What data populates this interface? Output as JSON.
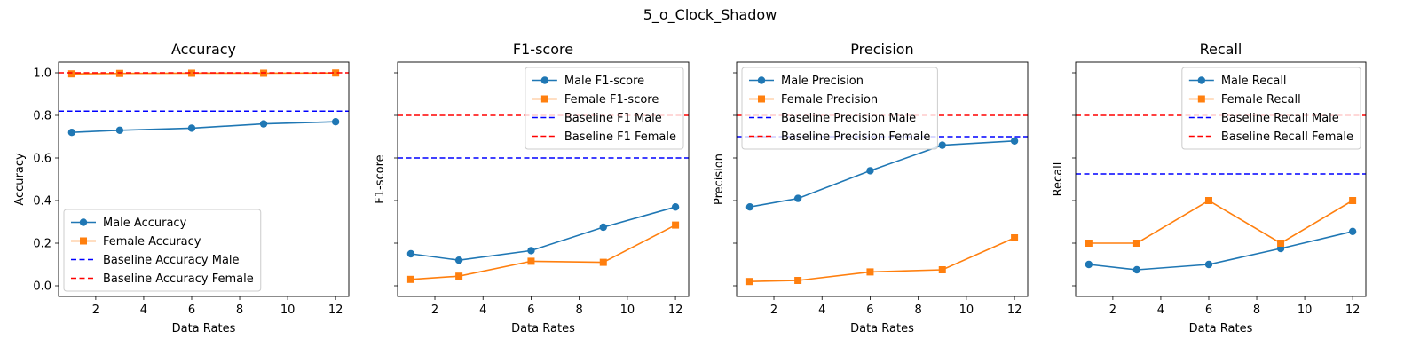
{
  "figure": {
    "suptitle": "5_o_Clock_Shadow"
  },
  "colors": {
    "male": "#1f77b4",
    "female": "#ff7f0e",
    "baseline_male": "#0000ff",
    "baseline_female": "#ff0000"
  },
  "chart_data": [
    {
      "type": "line",
      "title": "Accuracy",
      "xlabel": "Data Rates",
      "ylabel": "Accuracy",
      "x": [
        1,
        3,
        6,
        9,
        12
      ],
      "xlim": [
        0.45,
        12.55
      ],
      "ylim": [
        -0.05,
        1.05
      ],
      "xticks": [
        2,
        4,
        6,
        8,
        10,
        12
      ],
      "yticks": [
        0.0,
        0.2,
        0.4,
        0.6,
        0.8,
        1.0
      ],
      "ytick_labels": [
        "0.0",
        "0.2",
        "0.4",
        "0.6",
        "0.8",
        "1.0"
      ],
      "legend_loc": "lower-left",
      "series": [
        {
          "name": "Male Accuracy",
          "kind": "line",
          "marker": "circle",
          "color": "#1f77b4",
          "values": [
            0.72,
            0.73,
            0.74,
            0.76,
            0.77
          ]
        },
        {
          "name": "Female Accuracy",
          "kind": "line",
          "marker": "square",
          "color": "#ff7f0e",
          "values": [
            0.995,
            0.997,
            0.998,
            0.998,
            0.999
          ]
        },
        {
          "name": "Baseline Accuracy Male",
          "kind": "hline",
          "color": "#0000ff",
          "value": 0.82
        },
        {
          "name": "Baseline Accuracy Female",
          "kind": "hline",
          "color": "#ff0000",
          "value": 1.0
        }
      ]
    },
    {
      "type": "line",
      "title": "F1-score",
      "xlabel": "Data Rates",
      "ylabel": "F1-score",
      "x": [
        1,
        3,
        6,
        9,
        12
      ],
      "xlim": [
        0.45,
        12.55
      ],
      "ylim": [
        -0.05,
        1.05
      ],
      "xticks": [
        2,
        4,
        6,
        8,
        10,
        12
      ],
      "yticks": [
        0.0,
        0.2,
        0.4,
        0.6,
        0.8,
        1.0
      ],
      "ytick_labels": [
        "",
        "",
        "",
        "",
        "",
        ""
      ],
      "legend_loc": "upper-right",
      "series": [
        {
          "name": "Male F1-score",
          "kind": "line",
          "marker": "circle",
          "color": "#1f77b4",
          "values": [
            0.15,
            0.12,
            0.165,
            0.275,
            0.37
          ]
        },
        {
          "name": "Female F1-score",
          "kind": "line",
          "marker": "square",
          "color": "#ff7f0e",
          "values": [
            0.03,
            0.045,
            0.115,
            0.11,
            0.285
          ]
        },
        {
          "name": "Baseline F1 Male",
          "kind": "hline",
          "color": "#0000ff",
          "value": 0.6
        },
        {
          "name": "Baseline F1 Female",
          "kind": "hline",
          "color": "#ff0000",
          "value": 0.8
        }
      ]
    },
    {
      "type": "line",
      "title": "Precision",
      "xlabel": "Data Rates",
      "ylabel": "Precision",
      "x": [
        1,
        3,
        6,
        9,
        12
      ],
      "xlim": [
        0.45,
        12.55
      ],
      "ylim": [
        -0.05,
        1.05
      ],
      "xticks": [
        2,
        4,
        6,
        8,
        10,
        12
      ],
      "yticks": [
        0.0,
        0.2,
        0.4,
        0.6,
        0.8,
        1.0
      ],
      "ytick_labels": [
        "",
        "",
        "",
        "",
        "",
        ""
      ],
      "legend_loc": "upper-left",
      "series": [
        {
          "name": "Male Precision",
          "kind": "line",
          "marker": "circle",
          "color": "#1f77b4",
          "values": [
            0.37,
            0.41,
            0.54,
            0.66,
            0.68
          ]
        },
        {
          "name": "Female Precision",
          "kind": "line",
          "marker": "square",
          "color": "#ff7f0e",
          "values": [
            0.02,
            0.025,
            0.065,
            0.075,
            0.225
          ]
        },
        {
          "name": "Baseline Precision Male",
          "kind": "hline",
          "color": "#0000ff",
          "value": 0.7
        },
        {
          "name": "Baseline Precision Female",
          "kind": "hline",
          "color": "#ff0000",
          "value": 0.8
        }
      ]
    },
    {
      "type": "line",
      "title": "Recall",
      "xlabel": "Data Rates",
      "ylabel": "Recall",
      "x": [
        1,
        3,
        6,
        9,
        12
      ],
      "xlim": [
        0.45,
        12.55
      ],
      "ylim": [
        -0.05,
        1.05
      ],
      "xticks": [
        2,
        4,
        6,
        8,
        10,
        12
      ],
      "yticks": [
        0.0,
        0.2,
        0.4,
        0.6,
        0.8,
        1.0
      ],
      "ytick_labels": [
        "",
        "",
        "",
        "",
        "",
        ""
      ],
      "legend_loc": "upper-right",
      "series": [
        {
          "name": "Male Recall",
          "kind": "line",
          "marker": "circle",
          "color": "#1f77b4",
          "values": [
            0.1,
            0.075,
            0.1,
            0.175,
            0.255
          ]
        },
        {
          "name": "Female Recall",
          "kind": "line",
          "marker": "square",
          "color": "#ff7f0e",
          "values": [
            0.2,
            0.2,
            0.4,
            0.2,
            0.4
          ]
        },
        {
          "name": "Baseline Recall Male",
          "kind": "hline",
          "color": "#0000ff",
          "value": 0.525
        },
        {
          "name": "Baseline Recall Female",
          "kind": "hline",
          "color": "#ff0000",
          "value": 0.8
        }
      ]
    }
  ]
}
